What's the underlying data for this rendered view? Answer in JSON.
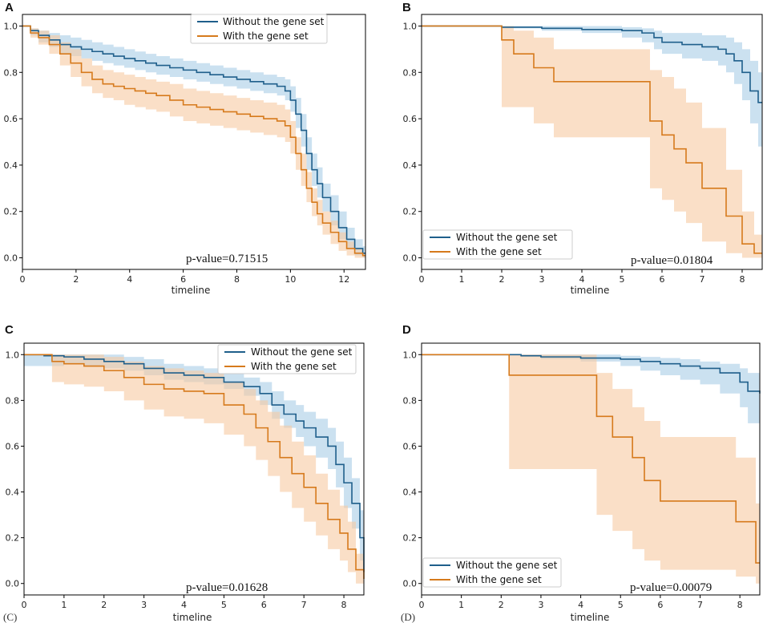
{
  "colors": {
    "without": "#1f5f8b",
    "with": "#d67a1c",
    "without_band": "#a9cde6",
    "with_band": "#f7c9a2"
  },
  "chart_data": [
    {
      "panel": "A",
      "type": "line",
      "title": "",
      "xlabel": "timeline",
      "ylabel": "",
      "xlim": [
        0,
        12.8
      ],
      "ylim": [
        -0.05,
        1.05
      ],
      "xticks": [
        0,
        2,
        4,
        6,
        8,
        10,
        12
      ],
      "yticks": [
        0.0,
        0.2,
        0.4,
        0.6,
        0.8,
        1.0
      ],
      "legend_position": "top-right",
      "p_value": "p-value=0.71515",
      "series": [
        {
          "name": "Without the gene set",
          "color_key": "without",
          "x": [
            0,
            0.3,
            0.6,
            1,
            1.4,
            1.8,
            2.2,
            2.6,
            3,
            3.4,
            3.8,
            4.2,
            4.6,
            5,
            5.5,
            6,
            6.5,
            7,
            7.5,
            8,
            8.5,
            9,
            9.5,
            9.8,
            10,
            10.2,
            10.4,
            10.6,
            10.8,
            11,
            11.2,
            11.5,
            11.8,
            12.1,
            12.4,
            12.7
          ],
          "y": [
            1.0,
            0.98,
            0.96,
            0.94,
            0.92,
            0.91,
            0.9,
            0.89,
            0.88,
            0.87,
            0.86,
            0.85,
            0.84,
            0.83,
            0.82,
            0.81,
            0.8,
            0.79,
            0.78,
            0.77,
            0.76,
            0.75,
            0.74,
            0.72,
            0.68,
            0.62,
            0.55,
            0.45,
            0.38,
            0.32,
            0.26,
            0.2,
            0.13,
            0.08,
            0.04,
            0.02
          ],
          "lower": [
            1.0,
            0.96,
            0.93,
            0.91,
            0.88,
            0.87,
            0.86,
            0.85,
            0.84,
            0.83,
            0.82,
            0.81,
            0.8,
            0.79,
            0.78,
            0.77,
            0.76,
            0.75,
            0.74,
            0.73,
            0.72,
            0.71,
            0.7,
            0.68,
            0.63,
            0.56,
            0.48,
            0.38,
            0.31,
            0.26,
            0.2,
            0.14,
            0.08,
            0.04,
            0.01,
            0.0
          ],
          "upper": [
            1.0,
            0.99,
            0.98,
            0.97,
            0.96,
            0.95,
            0.94,
            0.93,
            0.92,
            0.91,
            0.9,
            0.89,
            0.88,
            0.87,
            0.86,
            0.85,
            0.84,
            0.83,
            0.82,
            0.81,
            0.8,
            0.79,
            0.78,
            0.77,
            0.74,
            0.69,
            0.62,
            0.52,
            0.45,
            0.39,
            0.32,
            0.27,
            0.2,
            0.13,
            0.08,
            0.05
          ]
        },
        {
          "name": "With the gene set",
          "color_key": "with",
          "x": [
            0,
            0.3,
            0.6,
            1,
            1.4,
            1.8,
            2.2,
            2.6,
            3,
            3.4,
            3.8,
            4.2,
            4.6,
            5,
            5.5,
            6,
            6.5,
            7,
            7.5,
            8,
            8.5,
            9,
            9.5,
            9.8,
            10,
            10.2,
            10.4,
            10.6,
            10.8,
            11,
            11.2,
            11.5,
            11.8,
            12.1,
            12.4,
            12.7
          ],
          "y": [
            1.0,
            0.97,
            0.95,
            0.92,
            0.88,
            0.84,
            0.8,
            0.77,
            0.75,
            0.74,
            0.73,
            0.72,
            0.71,
            0.7,
            0.68,
            0.66,
            0.65,
            0.64,
            0.63,
            0.62,
            0.61,
            0.6,
            0.59,
            0.57,
            0.52,
            0.45,
            0.38,
            0.3,
            0.24,
            0.19,
            0.15,
            0.11,
            0.07,
            0.04,
            0.02,
            0.01
          ],
          "lower": [
            1.0,
            0.95,
            0.92,
            0.88,
            0.83,
            0.78,
            0.74,
            0.71,
            0.69,
            0.68,
            0.66,
            0.65,
            0.64,
            0.63,
            0.61,
            0.59,
            0.58,
            0.57,
            0.56,
            0.55,
            0.54,
            0.53,
            0.52,
            0.5,
            0.45,
            0.38,
            0.31,
            0.24,
            0.18,
            0.14,
            0.1,
            0.06,
            0.03,
            0.01,
            0.0,
            0.0
          ],
          "upper": [
            1.0,
            0.99,
            0.98,
            0.96,
            0.93,
            0.9,
            0.86,
            0.83,
            0.81,
            0.8,
            0.79,
            0.78,
            0.77,
            0.76,
            0.75,
            0.73,
            0.72,
            0.71,
            0.7,
            0.69,
            0.68,
            0.67,
            0.66,
            0.64,
            0.59,
            0.52,
            0.45,
            0.37,
            0.3,
            0.25,
            0.2,
            0.16,
            0.11,
            0.07,
            0.04,
            0.02
          ]
        }
      ]
    },
    {
      "panel": "B",
      "type": "line",
      "title": "",
      "xlabel": "timeline",
      "ylabel": "",
      "xlim": [
        0,
        8.5
      ],
      "ylim": [
        -0.05,
        1.05
      ],
      "xticks": [
        0,
        1,
        2,
        3,
        4,
        5,
        6,
        7,
        8
      ],
      "yticks": [
        0.0,
        0.2,
        0.4,
        0.6,
        0.8,
        1.0
      ],
      "legend_position": "bottom-left",
      "p_value": "p-value=0.01804",
      "series": [
        {
          "name": "Without the gene set",
          "color_key": "without",
          "x": [
            0,
            1,
            2,
            3,
            4,
            5,
            5.5,
            5.8,
            6,
            6.5,
            7,
            7.4,
            7.6,
            7.8,
            8,
            8.2,
            8.4
          ],
          "y": [
            1.0,
            1.0,
            0.995,
            0.99,
            0.985,
            0.98,
            0.97,
            0.95,
            0.93,
            0.92,
            0.91,
            0.9,
            0.88,
            0.85,
            0.8,
            0.72,
            0.67
          ],
          "lower": [
            1.0,
            1.0,
            0.99,
            0.98,
            0.97,
            0.95,
            0.93,
            0.9,
            0.88,
            0.86,
            0.85,
            0.83,
            0.8,
            0.75,
            0.68,
            0.58,
            0.48
          ],
          "upper": [
            1.0,
            1.0,
            1.0,
            1.0,
            1.0,
            0.995,
            0.99,
            0.98,
            0.97,
            0.97,
            0.96,
            0.96,
            0.95,
            0.93,
            0.9,
            0.85,
            0.8
          ]
        },
        {
          "name": "With the gene set",
          "color_key": "with",
          "x": [
            0,
            1.7,
            2,
            2.3,
            2.8,
            3.3,
            4,
            4.5,
            5,
            5.7,
            6,
            6.3,
            6.6,
            7,
            7.6,
            8,
            8.3
          ],
          "y": [
            1.0,
            1.0,
            0.94,
            0.88,
            0.82,
            0.76,
            0.76,
            0.76,
            0.76,
            0.59,
            0.53,
            0.47,
            0.41,
            0.3,
            0.18,
            0.06,
            0.02
          ],
          "lower": [
            1.0,
            1.0,
            0.65,
            0.65,
            0.58,
            0.52,
            0.52,
            0.52,
            0.52,
            0.3,
            0.25,
            0.2,
            0.15,
            0.07,
            0.02,
            0.0,
            0.0
          ],
          "upper": [
            1.0,
            1.0,
            1.0,
            0.98,
            0.95,
            0.9,
            0.9,
            0.9,
            0.9,
            0.81,
            0.78,
            0.73,
            0.67,
            0.56,
            0.38,
            0.2,
            0.1
          ]
        }
      ]
    },
    {
      "panel": "C",
      "type": "line",
      "title": "",
      "xlabel": "timeline",
      "ylabel": "",
      "xlim": [
        0,
        8.5
      ],
      "ylim": [
        -0.05,
        1.05
      ],
      "xticks": [
        0,
        1,
        2,
        3,
        4,
        5,
        6,
        7,
        8
      ],
      "yticks": [
        0.0,
        0.2,
        0.4,
        0.6,
        0.8,
        1.0
      ],
      "legend_position": "top-right",
      "p_value": "p-value=0.01628",
      "series": [
        {
          "name": "Without the gene set",
          "color_key": "without",
          "x": [
            0,
            0.5,
            1,
            1.5,
            2,
            2.5,
            3,
            3.5,
            4,
            4.5,
            5,
            5.5,
            5.9,
            6.2,
            6.5,
            6.8,
            7,
            7.3,
            7.6,
            7.8,
            8,
            8.2,
            8.4,
            8.5
          ],
          "y": [
            1.0,
            0.995,
            0.99,
            0.98,
            0.97,
            0.96,
            0.94,
            0.92,
            0.91,
            0.9,
            0.88,
            0.86,
            0.83,
            0.78,
            0.74,
            0.71,
            0.68,
            0.64,
            0.6,
            0.52,
            0.44,
            0.35,
            0.2,
            0.05
          ],
          "lower": [
            0.95,
            0.95,
            0.96,
            0.95,
            0.94,
            0.93,
            0.91,
            0.89,
            0.88,
            0.87,
            0.85,
            0.82,
            0.78,
            0.72,
            0.68,
            0.64,
            0.6,
            0.55,
            0.5,
            0.42,
            0.33,
            0.24,
            0.1,
            0.0
          ],
          "upper": [
            1.0,
            1.0,
            1.0,
            1.0,
            1.0,
            0.99,
            0.98,
            0.96,
            0.95,
            0.94,
            0.92,
            0.9,
            0.88,
            0.84,
            0.8,
            0.78,
            0.75,
            0.72,
            0.68,
            0.62,
            0.55,
            0.46,
            0.32,
            0.12
          ]
        },
        {
          "name": "With the gene set",
          "color_key": "with",
          "x": [
            0,
            0.7,
            1,
            1.5,
            2,
            2.5,
            3,
            3.5,
            4,
            4.5,
            5,
            5.5,
            5.8,
            6.1,
            6.4,
            6.7,
            7,
            7.3,
            7.6,
            7.9,
            8.1,
            8.3,
            8.5
          ],
          "y": [
            1.0,
            0.97,
            0.96,
            0.95,
            0.93,
            0.9,
            0.87,
            0.85,
            0.84,
            0.83,
            0.78,
            0.74,
            0.68,
            0.62,
            0.55,
            0.48,
            0.42,
            0.35,
            0.28,
            0.22,
            0.15,
            0.06,
            0.02
          ],
          "lower": [
            1.0,
            0.88,
            0.87,
            0.86,
            0.84,
            0.8,
            0.76,
            0.73,
            0.72,
            0.7,
            0.65,
            0.6,
            0.54,
            0.47,
            0.4,
            0.33,
            0.27,
            0.21,
            0.15,
            0.1,
            0.05,
            0.0,
            0.0
          ],
          "upper": [
            1.0,
            1.0,
            1.0,
            1.0,
            0.99,
            0.97,
            0.95,
            0.94,
            0.93,
            0.92,
            0.88,
            0.85,
            0.8,
            0.75,
            0.69,
            0.62,
            0.56,
            0.48,
            0.41,
            0.34,
            0.27,
            0.13,
            0.05
          ]
        }
      ]
    },
    {
      "panel": "D",
      "type": "line",
      "title": "",
      "xlabel": "timeline",
      "ylabel": "",
      "xlim": [
        0,
        8.5
      ],
      "ylim": [
        -0.05,
        1.05
      ],
      "xticks": [
        0,
        1,
        2,
        3,
        4,
        5,
        6,
        7,
        8
      ],
      "yticks": [
        0.0,
        0.2,
        0.4,
        0.6,
        0.8,
        1.0
      ],
      "legend_position": "bottom-left",
      "p_value": "p-value=0.00079",
      "series": [
        {
          "name": "Without the gene set",
          "color_key": "without",
          "x": [
            0,
            1,
            2,
            2.5,
            3,
            4,
            5,
            5.5,
            6,
            6.5,
            7,
            7.5,
            8,
            8.2,
            8.5
          ],
          "y": [
            1.0,
            1.0,
            1.0,
            0.995,
            0.99,
            0.985,
            0.98,
            0.97,
            0.96,
            0.95,
            0.94,
            0.92,
            0.88,
            0.84,
            0.83
          ],
          "lower": [
            1.0,
            1.0,
            1.0,
            0.99,
            0.98,
            0.97,
            0.95,
            0.93,
            0.91,
            0.89,
            0.87,
            0.83,
            0.77,
            0.7,
            0.68
          ],
          "upper": [
            1.0,
            1.0,
            1.0,
            1.0,
            1.0,
            1.0,
            0.995,
            0.99,
            0.985,
            0.98,
            0.97,
            0.96,
            0.94,
            0.92,
            0.91
          ]
        },
        {
          "name": "With the gene set",
          "color_key": "with",
          "x": [
            0,
            2.2,
            3,
            4,
            4.4,
            4.8,
            5.3,
            5.6,
            6,
            6.5,
            7,
            7.5,
            7.9,
            8.4,
            8.5
          ],
          "y": [
            1.0,
            0.91,
            0.91,
            0.91,
            0.73,
            0.64,
            0.55,
            0.45,
            0.36,
            0.36,
            0.36,
            0.36,
            0.27,
            0.09,
            0.09
          ],
          "lower": [
            1.0,
            0.5,
            0.5,
            0.5,
            0.3,
            0.23,
            0.15,
            0.1,
            0.06,
            0.06,
            0.06,
            0.06,
            0.03,
            0.0,
            0.0
          ],
          "upper": [
            1.0,
            1.0,
            1.0,
            1.0,
            0.92,
            0.85,
            0.77,
            0.71,
            0.64,
            0.64,
            0.64,
            0.64,
            0.55,
            0.35,
            0.35
          ]
        }
      ]
    }
  ],
  "corner_labels": {
    "C": "(C)",
    "D": "(D)"
  }
}
